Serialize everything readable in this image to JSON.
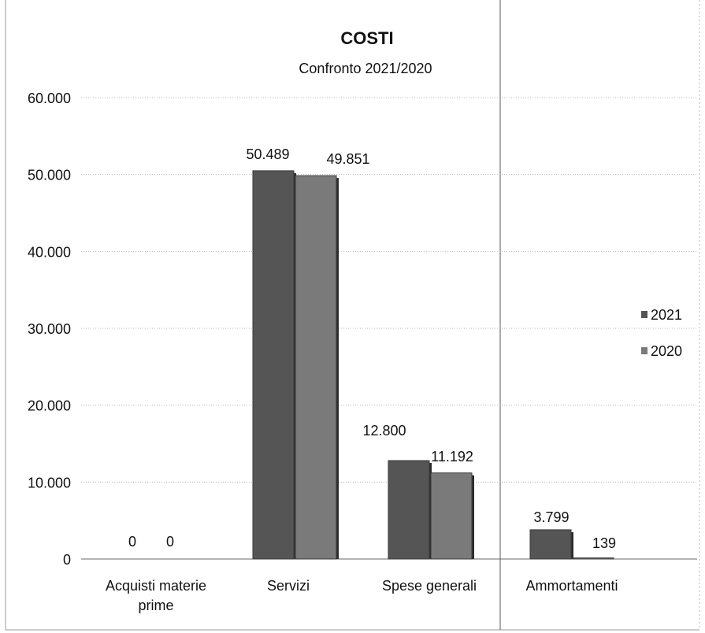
{
  "chart_data": {
    "type": "bar",
    "title": "COSTI",
    "subtitle": "Confronto 2021/2020",
    "categories": [
      [
        "Acquisti materie",
        "prime"
      ],
      [
        "Servizi"
      ],
      [
        "Spese generali"
      ],
      [
        "Ammortamenti"
      ]
    ],
    "series": [
      {
        "name": "2021",
        "values": [
          0,
          50489,
          12800,
          3799
        ],
        "labels": [
          "0",
          "50.489",
          "12.800",
          "3.799"
        ],
        "color": "#555555"
      },
      {
        "name": "2020",
        "values": [
          0,
          49851,
          11192,
          139
        ],
        "labels": [
          "0",
          "49.851",
          "11.192",
          "139"
        ],
        "color": "#7a7a7a"
      }
    ],
    "ylim": [
      0,
      60000
    ],
    "yticks": [
      0,
      10000,
      20000,
      30000,
      40000,
      50000,
      60000
    ],
    "ytick_labels": [
      "0",
      "10.000",
      "20.000",
      "30.000",
      "40.000",
      "50.000",
      "60.000"
    ],
    "grid": true,
    "legend_position": "right"
  }
}
